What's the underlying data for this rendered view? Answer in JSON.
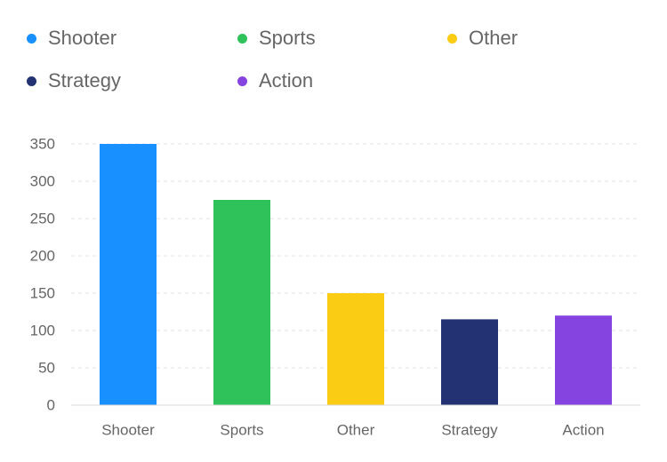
{
  "chart_data": {
    "type": "bar",
    "categories": [
      "Shooter",
      "Sports",
      "Other",
      "Strategy",
      "Action"
    ],
    "values": [
      350,
      275,
      150,
      115,
      120
    ],
    "colors": [
      "#1890FF",
      "#2FC25B",
      "#FACC14",
      "#223273",
      "#8543E0"
    ],
    "legend": {
      "position": "top",
      "items": [
        {
          "label": "Shooter",
          "color": "#1890FF"
        },
        {
          "label": "Sports",
          "color": "#2FC25B"
        },
        {
          "label": "Other",
          "color": "#FACC14"
        },
        {
          "label": "Strategy",
          "color": "#223273"
        },
        {
          "label": "Action",
          "color": "#8543E0"
        }
      ]
    },
    "yticks": [
      0,
      50,
      100,
      150,
      200,
      250,
      300,
      350
    ],
    "ylim": [
      0,
      350
    ],
    "grid": true,
    "title": "",
    "xlabel": "",
    "ylabel": ""
  }
}
